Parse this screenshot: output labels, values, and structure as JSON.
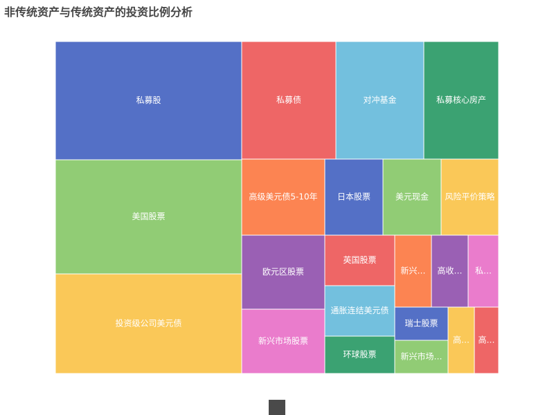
{
  "chart_data": {
    "type": "treemap",
    "title": "非传统资产与传统资产的投资比例分析",
    "colors": {
      "blue": "#5470c6",
      "green": "#91cc75",
      "yellow": "#fac858",
      "red": "#ee6666",
      "cyan": "#73c0de",
      "teal": "#3ba272",
      "orange": "#fc8452",
      "purple": "#9a60b4",
      "pink": "#ea7ccc"
    },
    "items": [
      {
        "name": "私募股",
        "display": "私募股",
        "value": 14.4,
        "color": "#5470c6"
      },
      {
        "name": "美国股票",
        "display": "美国股票",
        "value": 13.8,
        "color": "#91cc75"
      },
      {
        "name": "投资级公司美元债",
        "display": "投资级公司美元债",
        "value": 12.1,
        "color": "#fac858"
      },
      {
        "name": "私募债",
        "display": "私募债",
        "value": 7.1,
        "color": "#ee6666"
      },
      {
        "name": "对冲基金",
        "display": "对冲基金",
        "value": 6.7,
        "color": "#73c0de"
      },
      {
        "name": "私募核心房产",
        "display": "私募核心房产",
        "value": 5.7,
        "color": "#3ba272"
      },
      {
        "name": "高级美元债5-10年",
        "display": "高级美元债5-10年",
        "value": 4.1,
        "color": "#fc8452"
      },
      {
        "name": "日本股票",
        "display": "日本股票",
        "value": 2.8,
        "color": "#5470c6"
      },
      {
        "name": "美元现金",
        "display": "美元现金",
        "value": 2.8,
        "color": "#91cc75"
      },
      {
        "name": "风险平价策略",
        "display": "风险平价策略",
        "value": 2.8,
        "color": "#fac858"
      },
      {
        "name": "欧元区股票",
        "display": "欧元区股票",
        "value": 3.9,
        "color": "#9a60b4"
      },
      {
        "name": "新兴市场股票",
        "display": "新兴市场股票",
        "value": 3.5,
        "color": "#ea7ccc"
      },
      {
        "name": "英国股票",
        "display": "英国股票",
        "value": 2.3,
        "color": "#ee6666"
      },
      {
        "name": "通胀连结美元债",
        "display": "通胀连结美元债",
        "value": 2.3,
        "color": "#73c0de"
      },
      {
        "name": "环球股票",
        "display": "环球股票",
        "value": 1.7,
        "color": "#3ba272"
      },
      {
        "name": "新兴…",
        "display": "新兴…",
        "value": 1.6,
        "color": "#fc8452"
      },
      {
        "name": "高收…",
        "display": "高收…",
        "value": 1.6,
        "color": "#9a60b4"
      },
      {
        "name": "私…",
        "display": "私…",
        "value": 1.3,
        "color": "#ea7ccc"
      },
      {
        "name": "瑞士股票",
        "display": "瑞士股票",
        "value": 1.2,
        "color": "#5470c6"
      },
      {
        "name": "新兴市场…",
        "display": "新兴市场…",
        "value": 1.2,
        "color": "#91cc75"
      },
      {
        "name": "高…",
        "display": "高…",
        "value": 1.0,
        "color": "#fac858"
      },
      {
        "name": "高…",
        "display": "高…",
        "value": 1.0,
        "color": "#ee6666"
      }
    ]
  }
}
